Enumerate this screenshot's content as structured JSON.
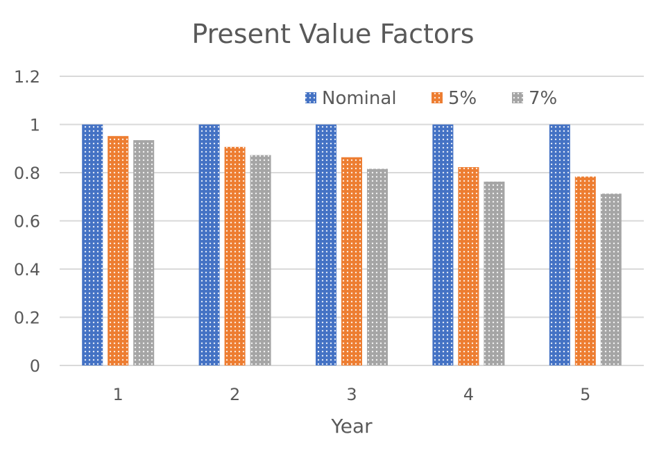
{
  "chart_data": {
    "type": "bar",
    "title": "Present Value Factors",
    "xlabel": "Year",
    "ylabel": "",
    "categories": [
      "1",
      "2",
      "3",
      "4",
      "5"
    ],
    "series": [
      {
        "name": "Nominal",
        "color": "#4472c4",
        "values": [
          1,
          1,
          1,
          1,
          1
        ]
      },
      {
        "name": "5%",
        "color": "#ed7d31",
        "values": [
          0.952,
          0.907,
          0.864,
          0.823,
          0.784
        ]
      },
      {
        "name": "7%",
        "color": "#a5a5a5",
        "values": [
          0.935,
          0.873,
          0.816,
          0.763,
          0.713
        ]
      }
    ],
    "ylim": [
      0,
      1.2
    ],
    "yticks": [
      "0",
      "0.2",
      "0.4",
      "0.6",
      "0.8",
      "1",
      "1.2"
    ],
    "grid": true,
    "legend_position": "top-right"
  }
}
